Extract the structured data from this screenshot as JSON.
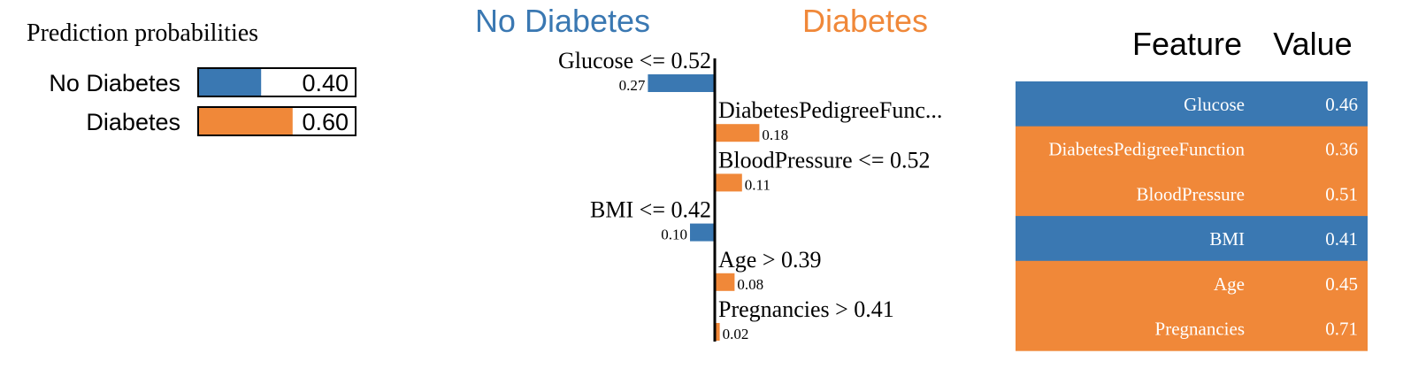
{
  "colors": {
    "negative": "#3a78b2",
    "positive": "#f08839",
    "axis": "#000000",
    "table_text": "#ffffff"
  },
  "chart_data": [
    {
      "type": "bar",
      "title": "Prediction probabilities",
      "categories": [
        "No Diabetes",
        "Diabetes"
      ],
      "values": [
        0.4,
        0.6
      ],
      "value_labels": [
        "0.40",
        "0.60"
      ],
      "xlim": [
        0,
        1
      ],
      "colors": [
        "#3a78b2",
        "#f08839"
      ]
    },
    {
      "type": "bar",
      "orientation": "horizontal",
      "class_labels": {
        "negative": "No Diabetes",
        "positive": "Diabetes"
      },
      "categories": [
        "Glucose <= 0.52",
        "DiabetesPedigreeFunc...",
        "BloodPressure <= 0.52",
        "BMI <= 0.42",
        "Age > 0.39",
        "Pregnancies > 0.41"
      ],
      "values": [
        -0.27,
        0.18,
        0.11,
        -0.1,
        0.08,
        0.02
      ],
      "value_labels": [
        "0.27",
        "0.18",
        "0.11",
        "0.10",
        "0.08",
        "0.02"
      ]
    },
    {
      "type": "table",
      "columns": [
        "Feature",
        "Value"
      ],
      "rows": [
        {
          "feature": "Glucose",
          "value": "0.46",
          "class": "negative"
        },
        {
          "feature": "DiabetesPedigreeFunction",
          "value": "0.36",
          "class": "positive"
        },
        {
          "feature": "BloodPressure",
          "value": "0.51",
          "class": "positive"
        },
        {
          "feature": "BMI",
          "value": "0.41",
          "class": "negative"
        },
        {
          "feature": "Age",
          "value": "0.45",
          "class": "positive"
        },
        {
          "feature": "Pregnancies",
          "value": "0.71",
          "class": "positive"
        }
      ]
    }
  ]
}
